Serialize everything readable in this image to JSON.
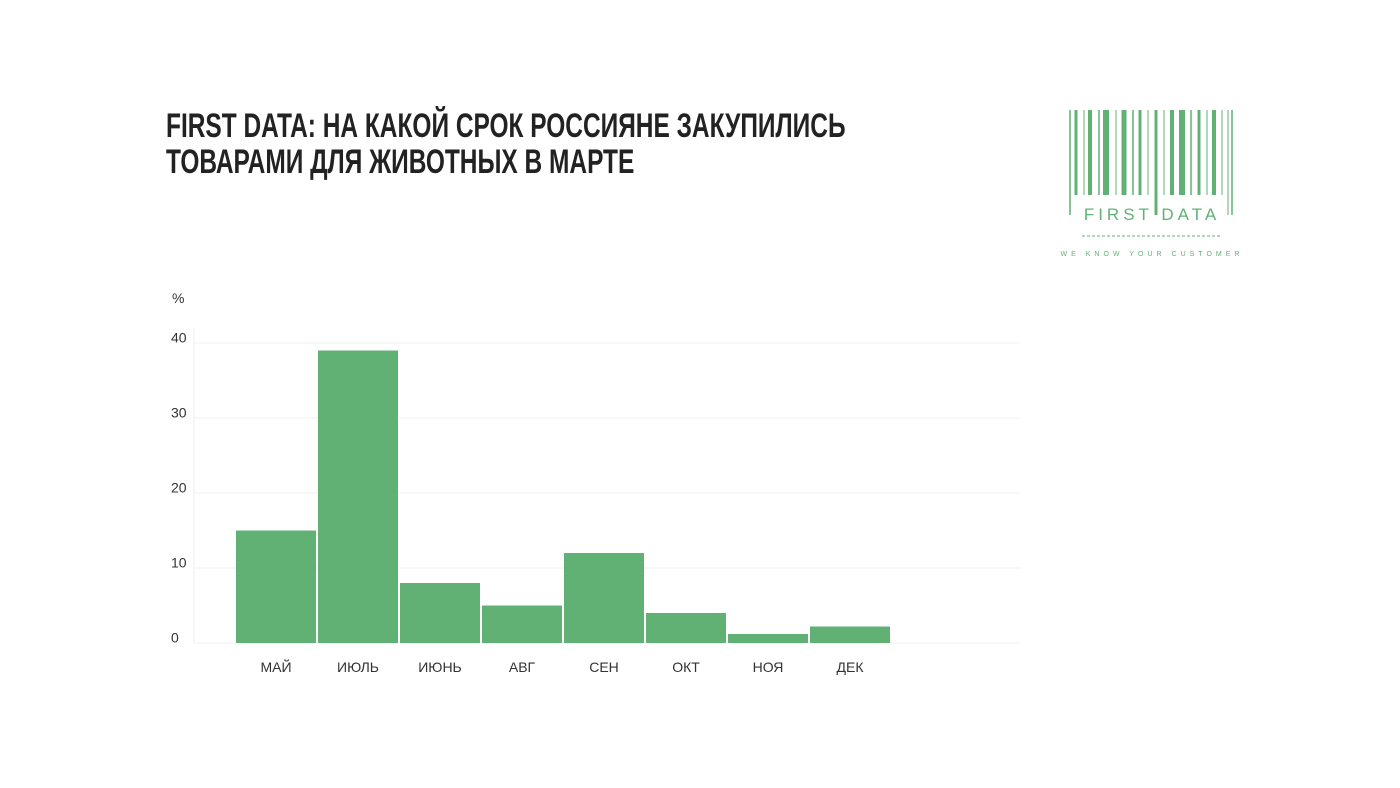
{
  "chart_data": {
    "type": "bar",
    "title_lines": [
      "FIRST DATA: НА КАКОЙ СРОК РОССИЯНЕ ЗАКУПИЛИСЬ",
      "ТОВАРАМИ ДЛЯ ЖИВОТНЫХ В МАРТЕ"
    ],
    "y_label": "%",
    "categories": [
      "МАЙ",
      "ИЮЛЬ",
      "ИЮНЬ",
      "АВГ",
      "СЕН",
      "ОКТ",
      "НОЯ",
      "ДЕК"
    ],
    "values": [
      15,
      39,
      8,
      5,
      12,
      4,
      1.2,
      2.2
    ],
    "color": "#61b175",
    "ylim": [
      0,
      42
    ],
    "yticks": [
      0,
      10,
      20,
      30,
      40
    ],
    "grid": true
  },
  "logo": {
    "name": "FIRST DATA",
    "tagline": "WE KNOW YOUR CUSTOMER"
  }
}
